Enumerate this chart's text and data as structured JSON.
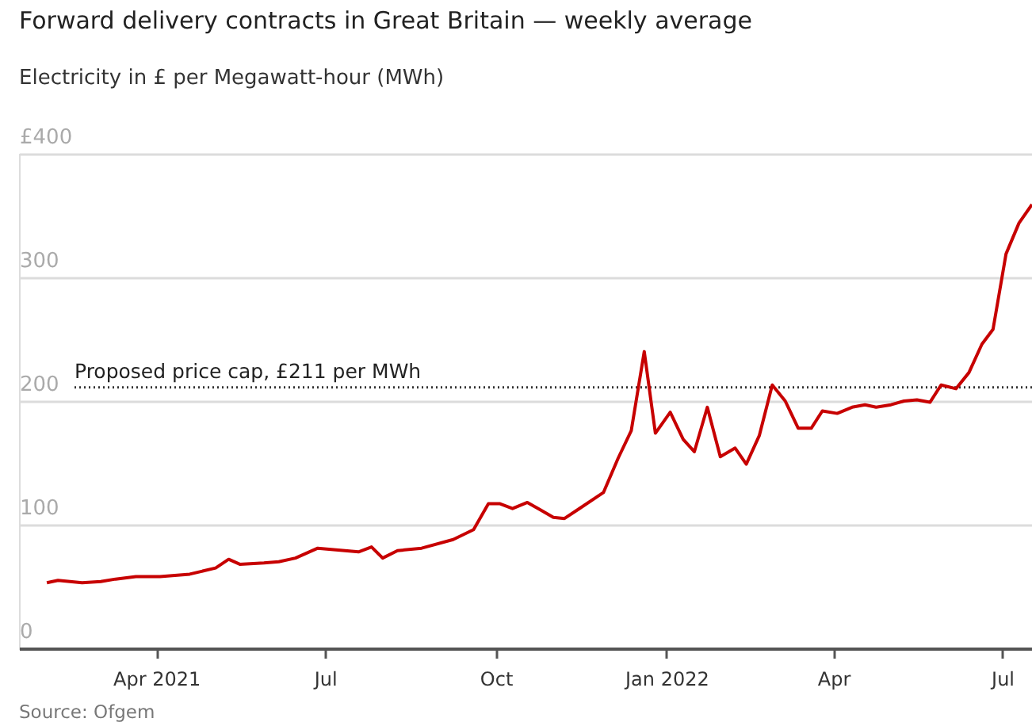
{
  "chart_data": {
    "type": "line",
    "title": "Forward delivery contracts in Great Britain — weekly average",
    "subtitle": "Electricity in £ per Megawatt-hour (MWh)",
    "annotations": [
      "Source: Ofgem"
    ],
    "x": [
      "2021-02-01",
      "2021-02-07",
      "2021-02-20",
      "2021-03-02",
      "2021-03-10",
      "2021-03-21",
      "2021-04-03",
      "2021-04-19",
      "2021-05-03",
      "2021-05-10",
      "2021-05-16",
      "2021-05-29",
      "2021-06-06",
      "2021-06-15",
      "2021-06-27",
      "2021-07-19",
      "2021-07-26",
      "2021-08-01",
      "2021-08-09",
      "2021-08-22",
      "2021-09-08",
      "2021-09-19",
      "2021-09-27",
      "2021-10-03",
      "2021-10-10",
      "2021-10-18",
      "2021-10-25",
      "2021-11-01",
      "2021-11-07",
      "2021-11-15",
      "2021-11-28",
      "2021-12-06",
      "2021-12-13",
      "2021-12-20",
      "2021-12-26",
      "2022-01-03",
      "2022-01-10",
      "2022-01-16",
      "2022-01-23",
      "2022-01-30",
      "2022-02-07",
      "2022-02-13",
      "2022-02-20",
      "2022-02-27",
      "2022-03-06",
      "2022-03-13",
      "2022-03-20",
      "2022-03-26",
      "2022-04-03",
      "2022-04-11",
      "2022-04-18",
      "2022-04-24",
      "2022-05-02",
      "2022-05-09",
      "2022-05-16",
      "2022-05-23",
      "2022-05-29",
      "2022-06-06",
      "2022-06-13",
      "2022-06-20",
      "2022-06-26",
      "2022-07-03",
      "2022-07-10",
      "2022-07-17"
    ],
    "series": [
      {
        "color": "#c70000",
        "values": [
          53,
          55,
          53,
          54,
          56,
          58,
          58,
          60,
          65,
          72,
          68,
          69,
          70,
          73,
          81,
          78,
          82,
          73,
          79,
          81,
          88,
          96,
          117,
          117,
          113,
          118,
          112,
          106,
          105,
          113,
          126,
          154,
          176,
          240,
          174,
          191,
          169,
          159,
          195,
          155,
          162,
          149,
          172,
          213,
          200,
          178,
          178,
          192,
          190,
          195,
          197,
          195,
          197,
          200,
          201,
          199,
          213,
          210,
          223,
          246,
          258,
          319,
          344,
          359
        ]
      }
    ],
    "xlim": [
      "2021-01-17",
      "2022-07-17"
    ],
    "xticks": [
      {
        "value": "2021-04-01",
        "label": "Apr 2021"
      },
      {
        "value": "2021-07-01",
        "label": "Jul"
      },
      {
        "value": "2021-10-01",
        "label": "Oct"
      },
      {
        "value": "2022-01-01",
        "label": "Jan 2022"
      },
      {
        "value": "2022-04-01",
        "label": "Apr"
      },
      {
        "value": "2022-07-01",
        "label": "Jul"
      }
    ],
    "ylim": [
      0,
      400
    ],
    "yticks": [
      0,
      100,
      200,
      300,
      {
        "value": 400,
        "label": "£400"
      }
    ],
    "ref_lines": [
      {
        "axis": "y",
        "value": 211,
        "label": "Proposed price cap, £211 per MWh",
        "color": "#333333",
        "line_style": "dotted"
      }
    ],
    "grid": "y",
    "marker": "none",
    "line_style": "solid"
  }
}
